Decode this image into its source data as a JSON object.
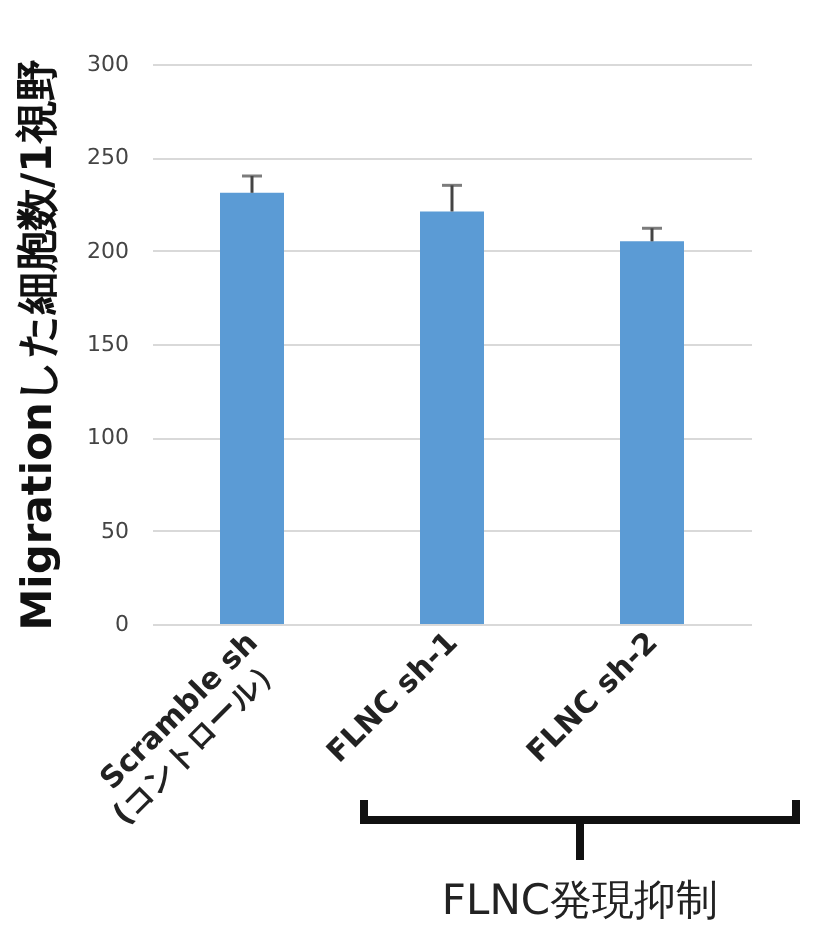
{
  "chart_data": {
    "type": "bar",
    "ylabel": "Migrationした細胞数/1視野",
    "categories": [
      "Scramble sh\n(コントロール）",
      "FLNC sh-1",
      "FLNC sh-2"
    ],
    "values": [
      231,
      221,
      205
    ],
    "errors": [
      [
        231,
        240
      ],
      [
        221,
        235
      ],
      [
        205,
        212
      ]
    ],
    "color": "#5b9bd5",
    "ylim": [
      0,
      300
    ],
    "yticks": [
      0,
      50,
      100,
      150,
      200,
      250,
      300
    ],
    "grid": "y",
    "annotations": [
      "FLNC発現抑制"
    ]
  }
}
